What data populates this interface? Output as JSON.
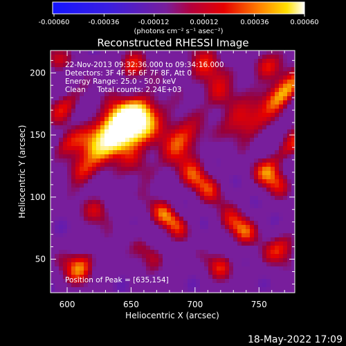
{
  "colorbar": {
    "ticks": [
      "-0.00060",
      "-0.00036",
      "-0.00012",
      "0.00012",
      "0.00036",
      "0.00060"
    ],
    "unit_label": "(photons cm⁻² s⁻¹ asec⁻²)"
  },
  "chart_data": {
    "type": "heatmap",
    "title": "Reconstructed RHESSI Image",
    "xlabel": "Heliocentric X (arcsec)",
    "ylabel": "Heliocentric Y (arcsec)",
    "xlim": [
      587,
      778
    ],
    "ylim": [
      23,
      218
    ],
    "x_ticks": [
      600,
      650,
      700,
      750
    ],
    "y_ticks": [
      50,
      100,
      150,
      200
    ],
    "colorbar_range": [
      -0.0006,
      0.0006
    ],
    "colors": {
      "cold": "#1414ff",
      "mid": "#781e9c",
      "warm": "#e60000",
      "hot": "#ffe000",
      "peak": "#ffffff"
    },
    "annotations": [
      "22-Nov-2013 09:32:36.000 to 09:34:16.000",
      "Detectors: 3F 4F 5F 6F 7F 8F, Att 0",
      "Energy Range: 25.0 - 50.0 keV",
      "Clean     Total counts: 2.24E+03"
    ],
    "peak_label": "Position of Peak = [635,154]",
    "peak_position": [
      635,
      154
    ]
  },
  "timestamp": "18-May-2022 17:09"
}
